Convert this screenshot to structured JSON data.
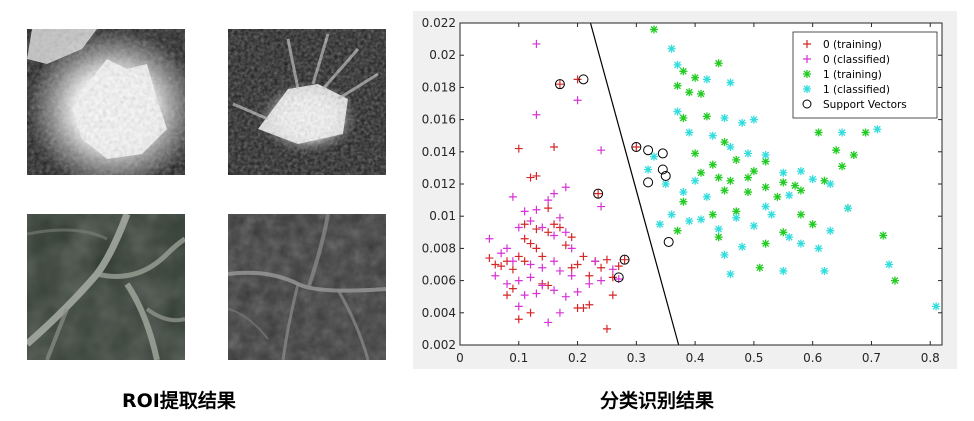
{
  "roi_caption": "ROI提取结果",
  "plot_caption": "分类识别结果",
  "roi_tiles": [
    {
      "position": "top-left",
      "description": "bright lesion on dark background"
    },
    {
      "position": "top-right",
      "description": "bright spiculated lesion"
    },
    {
      "position": "bottom-left",
      "description": "vessel-like branching structure"
    },
    {
      "position": "bottom-right",
      "description": "faint vessel-like structure"
    }
  ],
  "chart_data": {
    "type": "scatter",
    "xlim": [
      0,
      0.82
    ],
    "ylim": [
      0.002,
      0.022
    ],
    "xticks": [
      0,
      0.1,
      0.2,
      0.3,
      0.4,
      0.5,
      0.6,
      0.7,
      0.8
    ],
    "yticks": [
      0.002,
      0.004,
      0.006,
      0.008,
      0.01,
      0.012,
      0.014,
      0.016,
      0.018,
      0.02,
      0.022
    ],
    "xtick_labels": [
      "0",
      "0.1",
      "0.2",
      "0.3",
      "0.4",
      "0.5",
      "0.6",
      "0.7",
      "0.8"
    ],
    "ytick_labels": [
      "0.002",
      "0.004",
      "0.006",
      "0.008",
      "0.01",
      "0.012",
      "0.014",
      "0.016",
      "0.018",
      "0.02",
      "0.022"
    ],
    "legend_position": "top-right",
    "boundary": {
      "x": [
        0.222,
        0.372
      ],
      "y": [
        0.022,
        0.002
      ]
    },
    "series": [
      {
        "name": "0 (training)",
        "marker": "+",
        "color": "#d62728",
        "points": [
          [
            0.1,
            0.0142
          ],
          [
            0.12,
            0.0124
          ],
          [
            0.13,
            0.0125
          ],
          [
            0.16,
            0.0143
          ],
          [
            0.17,
            0.0182
          ],
          [
            0.2,
            0.0185
          ],
          [
            0.05,
            0.0074
          ],
          [
            0.06,
            0.007
          ],
          [
            0.07,
            0.0069
          ],
          [
            0.08,
            0.0072
          ],
          [
            0.09,
            0.0067
          ],
          [
            0.1,
            0.0075
          ],
          [
            0.11,
            0.0072
          ],
          [
            0.11,
            0.0086
          ],
          [
            0.12,
            0.0083
          ],
          [
            0.13,
            0.0092
          ],
          [
            0.14,
            0.0075
          ],
          [
            0.15,
            0.009
          ],
          [
            0.16,
            0.0095
          ],
          [
            0.17,
            0.0093
          ],
          [
            0.18,
            0.0082
          ],
          [
            0.19,
            0.0087
          ],
          [
            0.19,
            0.0068
          ],
          [
            0.2,
            0.007
          ],
          [
            0.21,
            0.0075
          ],
          [
            0.22,
            0.0063
          ],
          [
            0.23,
            0.0072
          ],
          [
            0.24,
            0.0068
          ],
          [
            0.25,
            0.0073
          ],
          [
            0.26,
            0.0062
          ],
          [
            0.27,
            0.0069
          ],
          [
            0.28,
            0.0073
          ],
          [
            0.26,
            0.0051
          ],
          [
            0.08,
            0.0051
          ],
          [
            0.09,
            0.0055
          ],
          [
            0.1,
            0.0036
          ],
          [
            0.12,
            0.004
          ],
          [
            0.15,
            0.0057
          ],
          [
            0.2,
            0.0043
          ],
          [
            0.21,
            0.0043
          ],
          [
            0.22,
            0.0045
          ],
          [
            0.25,
            0.003
          ],
          [
            0.3,
            0.0143
          ],
          [
            0.235,
            0.0114
          ],
          [
            0.14,
            0.0058
          ],
          [
            0.11,
            0.0095
          ],
          [
            0.15,
            0.0105
          ],
          [
            0.13,
            0.008
          ]
        ]
      },
      {
        "name": "0 (classified)",
        "marker": "+",
        "color": "#d633d6",
        "points": [
          [
            0.13,
            0.0207
          ],
          [
            0.2,
            0.0172
          ],
          [
            0.13,
            0.0163
          ],
          [
            0.24,
            0.0141
          ],
          [
            0.09,
            0.0112
          ],
          [
            0.16,
            0.0114
          ],
          [
            0.18,
            0.0118
          ],
          [
            0.15,
            0.011
          ],
          [
            0.11,
            0.0103
          ],
          [
            0.13,
            0.0104
          ],
          [
            0.17,
            0.0099
          ],
          [
            0.05,
            0.0086
          ],
          [
            0.08,
            0.008
          ],
          [
            0.1,
            0.0093
          ],
          [
            0.12,
            0.0097
          ],
          [
            0.14,
            0.0093
          ],
          [
            0.16,
            0.0088
          ],
          [
            0.18,
            0.009
          ],
          [
            0.19,
            0.008
          ],
          [
            0.07,
            0.0077
          ],
          [
            0.09,
            0.0072
          ],
          [
            0.12,
            0.007
          ],
          [
            0.14,
            0.0068
          ],
          [
            0.16,
            0.0072
          ],
          [
            0.17,
            0.0066
          ],
          [
            0.19,
            0.0063
          ],
          [
            0.06,
            0.0063
          ],
          [
            0.08,
            0.0058
          ],
          [
            0.1,
            0.006
          ],
          [
            0.12,
            0.0062
          ],
          [
            0.14,
            0.0057
          ],
          [
            0.16,
            0.0054
          ],
          [
            0.18,
            0.005
          ],
          [
            0.2,
            0.0053
          ],
          [
            0.22,
            0.0058
          ],
          [
            0.24,
            0.006
          ],
          [
            0.26,
            0.0067
          ],
          [
            0.15,
            0.0034
          ],
          [
            0.17,
            0.004
          ],
          [
            0.1,
            0.0044
          ],
          [
            0.24,
            0.0106
          ],
          [
            0.27,
            0.0061
          ],
          [
            0.23,
            0.0072
          ],
          [
            0.11,
            0.0051
          ],
          [
            0.13,
            0.0052
          ]
        ]
      },
      {
        "name": "1 (training)",
        "marker": "*",
        "color": "#22cc22",
        "points": [
          [
            0.33,
            0.0216
          ],
          [
            0.38,
            0.019
          ],
          [
            0.44,
            0.0195
          ],
          [
            0.4,
            0.0186
          ],
          [
            0.39,
            0.0177
          ],
          [
            0.37,
            0.0181
          ],
          [
            0.41,
            0.0176
          ],
          [
            0.42,
            0.0162
          ],
          [
            0.38,
            0.0161
          ],
          [
            0.45,
            0.0146
          ],
          [
            0.4,
            0.0139
          ],
          [
            0.41,
            0.0127
          ],
          [
            0.43,
            0.0132
          ],
          [
            0.44,
            0.0124
          ],
          [
            0.46,
            0.0122
          ],
          [
            0.45,
            0.0116
          ],
          [
            0.38,
            0.0109
          ],
          [
            0.43,
            0.0101
          ],
          [
            0.37,
            0.0091
          ],
          [
            0.44,
            0.0087
          ],
          [
            0.5,
            0.0128
          ],
          [
            0.52,
            0.0134
          ],
          [
            0.55,
            0.0121
          ],
          [
            0.57,
            0.0119
          ],
          [
            0.54,
            0.0112
          ],
          [
            0.58,
            0.0116
          ],
          [
            0.6,
            0.0095
          ],
          [
            0.62,
            0.0122
          ],
          [
            0.64,
            0.0141
          ],
          [
            0.65,
            0.0131
          ],
          [
            0.66,
            0.0105
          ],
          [
            0.67,
            0.0138
          ],
          [
            0.69,
            0.0152
          ],
          [
            0.72,
            0.0088
          ],
          [
            0.74,
            0.006
          ],
          [
            0.52,
            0.0083
          ],
          [
            0.51,
            0.0068
          ],
          [
            0.55,
            0.009
          ],
          [
            0.58,
            0.0101
          ],
          [
            0.47,
            0.0103
          ],
          [
            0.49,
            0.0115
          ],
          [
            0.52,
            0.0118
          ],
          [
            0.61,
            0.0152
          ],
          [
            0.47,
            0.0135
          ],
          [
            0.49,
            0.0124
          ]
        ]
      },
      {
        "name": "1 (classified)",
        "marker": "*",
        "color": "#33dddd",
        "points": [
          [
            0.36,
            0.0204
          ],
          [
            0.37,
            0.0194
          ],
          [
            0.42,
            0.0185
          ],
          [
            0.46,
            0.0183
          ],
          [
            0.37,
            0.0165
          ],
          [
            0.45,
            0.0161
          ],
          [
            0.48,
            0.0158
          ],
          [
            0.5,
            0.016
          ],
          [
            0.39,
            0.0152
          ],
          [
            0.43,
            0.015
          ],
          [
            0.46,
            0.0143
          ],
          [
            0.49,
            0.0139
          ],
          [
            0.52,
            0.0138
          ],
          [
            0.55,
            0.0127
          ],
          [
            0.58,
            0.0128
          ],
          [
            0.6,
            0.0123
          ],
          [
            0.63,
            0.012
          ],
          [
            0.65,
            0.0152
          ],
          [
            0.71,
            0.0154
          ],
          [
            0.32,
            0.0129
          ],
          [
            0.33,
            0.0137
          ],
          [
            0.35,
            0.012
          ],
          [
            0.38,
            0.0115
          ],
          [
            0.4,
            0.0122
          ],
          [
            0.42,
            0.0112
          ],
          [
            0.36,
            0.0101
          ],
          [
            0.39,
            0.0097
          ],
          [
            0.41,
            0.0098
          ],
          [
            0.34,
            0.0095
          ],
          [
            0.44,
            0.0092
          ],
          [
            0.47,
            0.0099
          ],
          [
            0.5,
            0.0094
          ],
          [
            0.53,
            0.0101
          ],
          [
            0.56,
            0.0087
          ],
          [
            0.58,
            0.0083
          ],
          [
            0.61,
            0.008
          ],
          [
            0.63,
            0.0091
          ],
          [
            0.45,
            0.0076
          ],
          [
            0.48,
            0.0081
          ],
          [
            0.46,
            0.0064
          ],
          [
            0.55,
            0.0066
          ],
          [
            0.62,
            0.0066
          ],
          [
            0.73,
            0.007
          ],
          [
            0.81,
            0.0044
          ],
          [
            0.52,
            0.0106
          ],
          [
            0.56,
            0.0113
          ],
          [
            0.66,
            0.0105
          ]
        ]
      }
    ],
    "support_vectors": [
      [
        0.17,
        0.0182
      ],
      [
        0.21,
        0.0185
      ],
      [
        0.235,
        0.0114
      ],
      [
        0.3,
        0.0143
      ],
      [
        0.32,
        0.0141
      ],
      [
        0.345,
        0.0139
      ],
      [
        0.345,
        0.0129
      ],
      [
        0.35,
        0.0125
      ],
      [
        0.32,
        0.0121
      ],
      [
        0.355,
        0.0084
      ],
      [
        0.28,
        0.0073
      ],
      [
        0.27,
        0.0062
      ]
    ],
    "support_vector_label": "Support Vectors"
  }
}
